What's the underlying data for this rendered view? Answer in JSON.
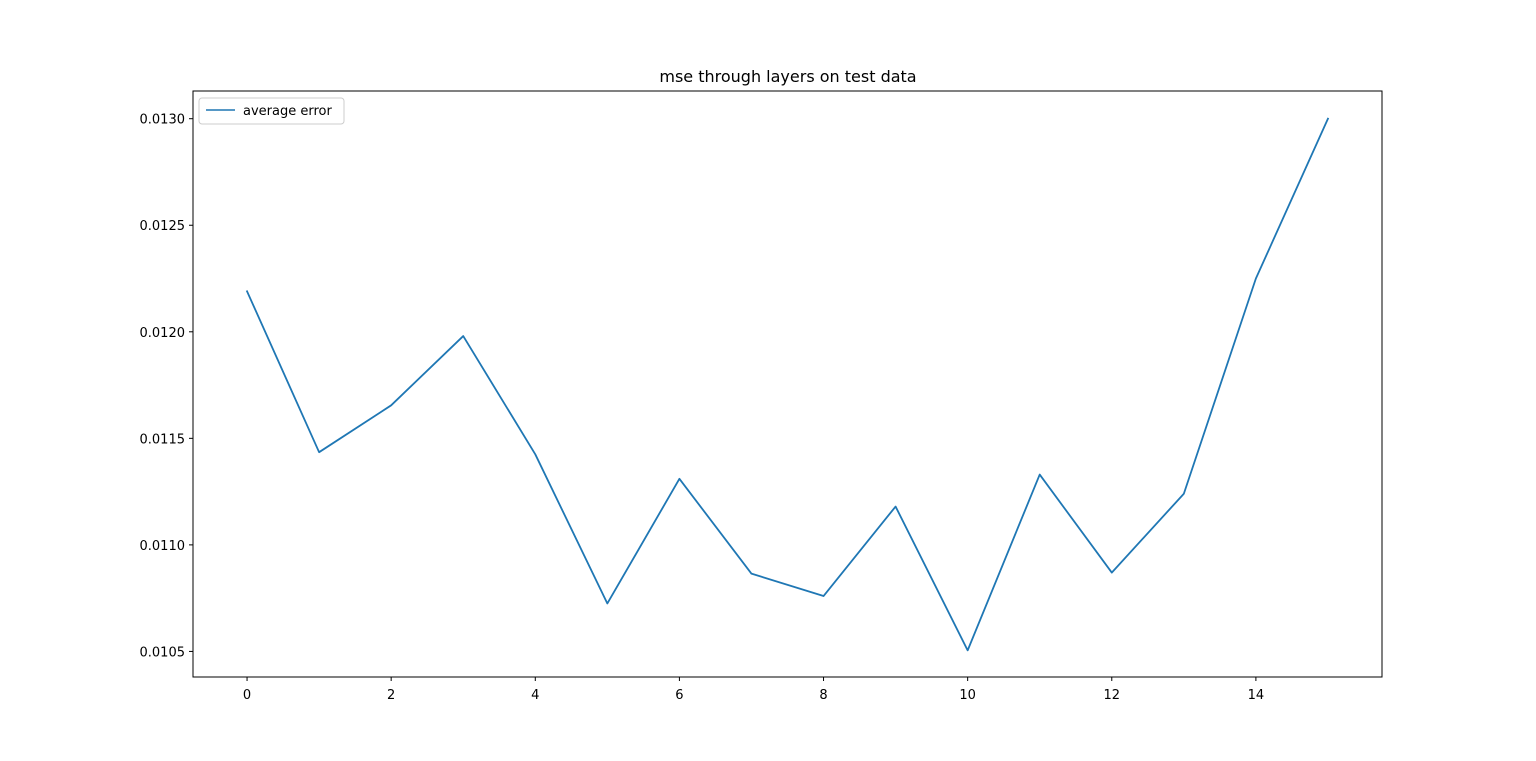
{
  "chart_data": {
    "type": "line",
    "title": "mse through layers on test data",
    "xlabel": "",
    "ylabel": "",
    "xlim": [
      -0.75,
      15.75
    ],
    "ylim": [
      0.01038,
      0.01313
    ],
    "x_ticks": [
      0,
      2,
      4,
      6,
      8,
      10,
      12,
      14
    ],
    "x_tick_labels": [
      "0",
      "2",
      "4",
      "6",
      "8",
      "10",
      "12",
      "14"
    ],
    "y_ticks": [
      0.0105,
      0.011,
      0.0115,
      0.012,
      0.0125,
      0.013
    ],
    "y_tick_labels": [
      "0.0105",
      "0.0110",
      "0.0115",
      "0.0120",
      "0.0125",
      "0.0130"
    ],
    "grid": false,
    "legend_position": "top-left",
    "x": [
      0,
      1,
      2,
      3,
      4,
      5,
      6,
      7,
      8,
      9,
      10,
      11,
      12,
      13,
      14,
      15
    ],
    "series": [
      {
        "name": "average error",
        "color": "#1f77b4",
        "values": [
          0.01219,
          0.011435,
          0.011655,
          0.01198,
          0.011425,
          0.010725,
          0.01131,
          0.010865,
          0.01076,
          0.01118,
          0.010505,
          0.01133,
          0.01087,
          0.01124,
          0.01225,
          0.013
        ]
      }
    ]
  }
}
